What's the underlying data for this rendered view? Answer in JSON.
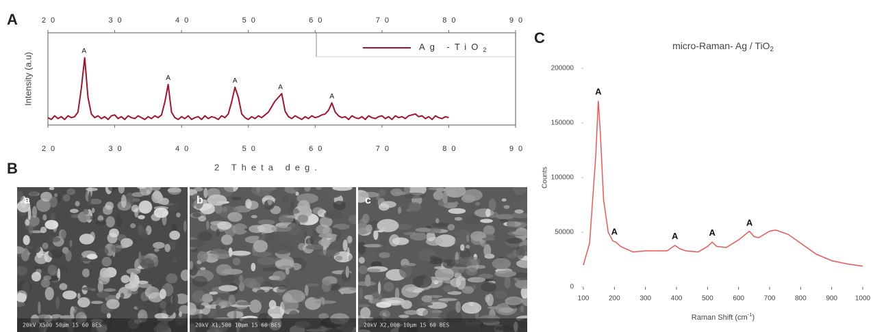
{
  "panel_labels": [
    "A",
    "B",
    "C"
  ],
  "chart_data": [
    {
      "type": "line",
      "xlabel": "2 Theta deg.",
      "ylabel": "Intensity (a.u)",
      "xlim": [
        20,
        90
      ],
      "xticks": [
        20,
        30,
        40,
        50,
        60,
        70,
        80,
        90
      ],
      "ylim": [
        0,
        100
      ],
      "series": [
        {
          "name": "Ag -TiO2",
          "color": "#a5122a",
          "x": [
            20,
            20.5,
            21,
            21.5,
            22,
            22.5,
            23,
            23.5,
            24,
            24.5,
            25,
            25.5,
            26,
            26.5,
            27,
            27.5,
            28,
            28.5,
            29,
            29.5,
            30,
            30.5,
            31,
            31.5,
            32,
            32.5,
            33,
            33.5,
            34,
            34.5,
            35,
            35.5,
            36,
            36.5,
            37,
            37.5,
            38,
            38.5,
            39,
            39.5,
            40,
            40.5,
            41,
            41.5,
            42,
            42.5,
            43,
            43.5,
            44,
            44.5,
            45,
            45.5,
            46,
            46.5,
            47,
            47.5,
            48,
            48.5,
            49,
            49.5,
            50,
            50.5,
            51,
            51.5,
            52,
            52.5,
            53,
            53.5,
            54,
            54.5,
            55,
            55.5,
            56,
            56.5,
            57,
            57.5,
            58,
            58.5,
            59,
            59.5,
            60,
            60.5,
            61,
            61.5,
            62,
            62.5,
            63,
            63.5,
            64,
            64.5,
            65,
            65.5,
            66,
            66.5,
            67,
            67.5,
            68,
            68.5,
            69,
            69.5,
            70,
            70.5,
            71,
            71.5,
            72,
            72.5,
            73,
            73.5,
            74,
            74.5,
            75,
            75.5,
            76,
            76.5,
            77,
            77.5,
            78,
            78.5,
            79,
            79.5,
            80
          ],
          "values": [
            8,
            6,
            10,
            7,
            9,
            6,
            10,
            8,
            9,
            14,
            40,
            73,
            30,
            12,
            8,
            10,
            7,
            9,
            6,
            10,
            11,
            7,
            9,
            6,
            10,
            8,
            7,
            10,
            8,
            6,
            9,
            7,
            10,
            8,
            11,
            25,
            44,
            14,
            8,
            6,
            9,
            7,
            10,
            6,
            8,
            9,
            6,
            10,
            7,
            9,
            8,
            6,
            10,
            8,
            12,
            25,
            41,
            30,
            12,
            8,
            6,
            9,
            7,
            10,
            8,
            11,
            14,
            20,
            26,
            30,
            34,
            15,
            9,
            7,
            10,
            8,
            6,
            9,
            7,
            10,
            8,
            9,
            11,
            12,
            16,
            24,
            14,
            10,
            8,
            9,
            6,
            10,
            8,
            7,
            9,
            6,
            10,
            8,
            7,
            9,
            10,
            7,
            9,
            6,
            10,
            8,
            9,
            7,
            10,
            11,
            12,
            9,
            10,
            7,
            9,
            6,
            10,
            8,
            7,
            9,
            8
          ]
        }
      ],
      "annotations": [
        {
          "text": "A",
          "x": 25.4,
          "y": 80
        },
        {
          "text": "A",
          "x": 38,
          "y": 51
        },
        {
          "text": "A",
          "x": 48,
          "y": 48
        },
        {
          "text": "A",
          "x": 54.8,
          "y": 41
        },
        {
          "text": "A",
          "x": 62.5,
          "y": 31
        }
      ]
    },
    {
      "type": "line",
      "title": "micro-Raman- Ag / TiO2",
      "xlabel": "Raman Shift (cm-1)",
      "ylabel": "Counts",
      "xlim": [
        100,
        1000
      ],
      "xticks": [
        100,
        200,
        300,
        400,
        500,
        600,
        700,
        800,
        900,
        1000
      ],
      "ylim": [
        0,
        200000
      ],
      "yticks": [
        0,
        50000,
        100000,
        150000,
        200000
      ],
      "series": [
        {
          "name": "micro-Raman",
          "color": "#f05555",
          "x": [
            100,
            120,
            140,
            148,
            155,
            165,
            180,
            195,
            205,
            220,
            260,
            300,
            340,
            370,
            395,
            410,
            430,
            470,
            500,
            515,
            530,
            560,
            600,
            635,
            650,
            665,
            700,
            720,
            760,
            800,
            850,
            900,
            950,
            1000
          ],
          "values": [
            20000,
            40000,
            120000,
            170000,
            140000,
            80000,
            50000,
            42000,
            41000,
            37000,
            32000,
            33000,
            33000,
            33000,
            38000,
            35000,
            33000,
            32000,
            37000,
            41000,
            37000,
            36000,
            43000,
            51000,
            46000,
            45000,
            51000,
            52000,
            48000,
            40000,
            30000,
            24000,
            21000,
            19000
          ]
        }
      ],
      "annotations": [
        {
          "text": "A",
          "x": 148,
          "y": 178000
        },
        {
          "text": "A",
          "x": 200,
          "y": 50000
        },
        {
          "text": "A",
          "x": 395,
          "y": 46000
        },
        {
          "text": "A",
          "x": 515,
          "y": 49000
        },
        {
          "text": "A",
          "x": 635,
          "y": 58000
        }
      ]
    }
  ],
  "sem_images": [
    {
      "label": "a",
      "caption": "20kV X500 50µm 15 60 BES"
    },
    {
      "label": "b",
      "caption": "20kV X1,500 10µm 15 60 BES"
    },
    {
      "label": "c",
      "caption": "20kV X2,000 10µm 15 60 BES"
    }
  ]
}
